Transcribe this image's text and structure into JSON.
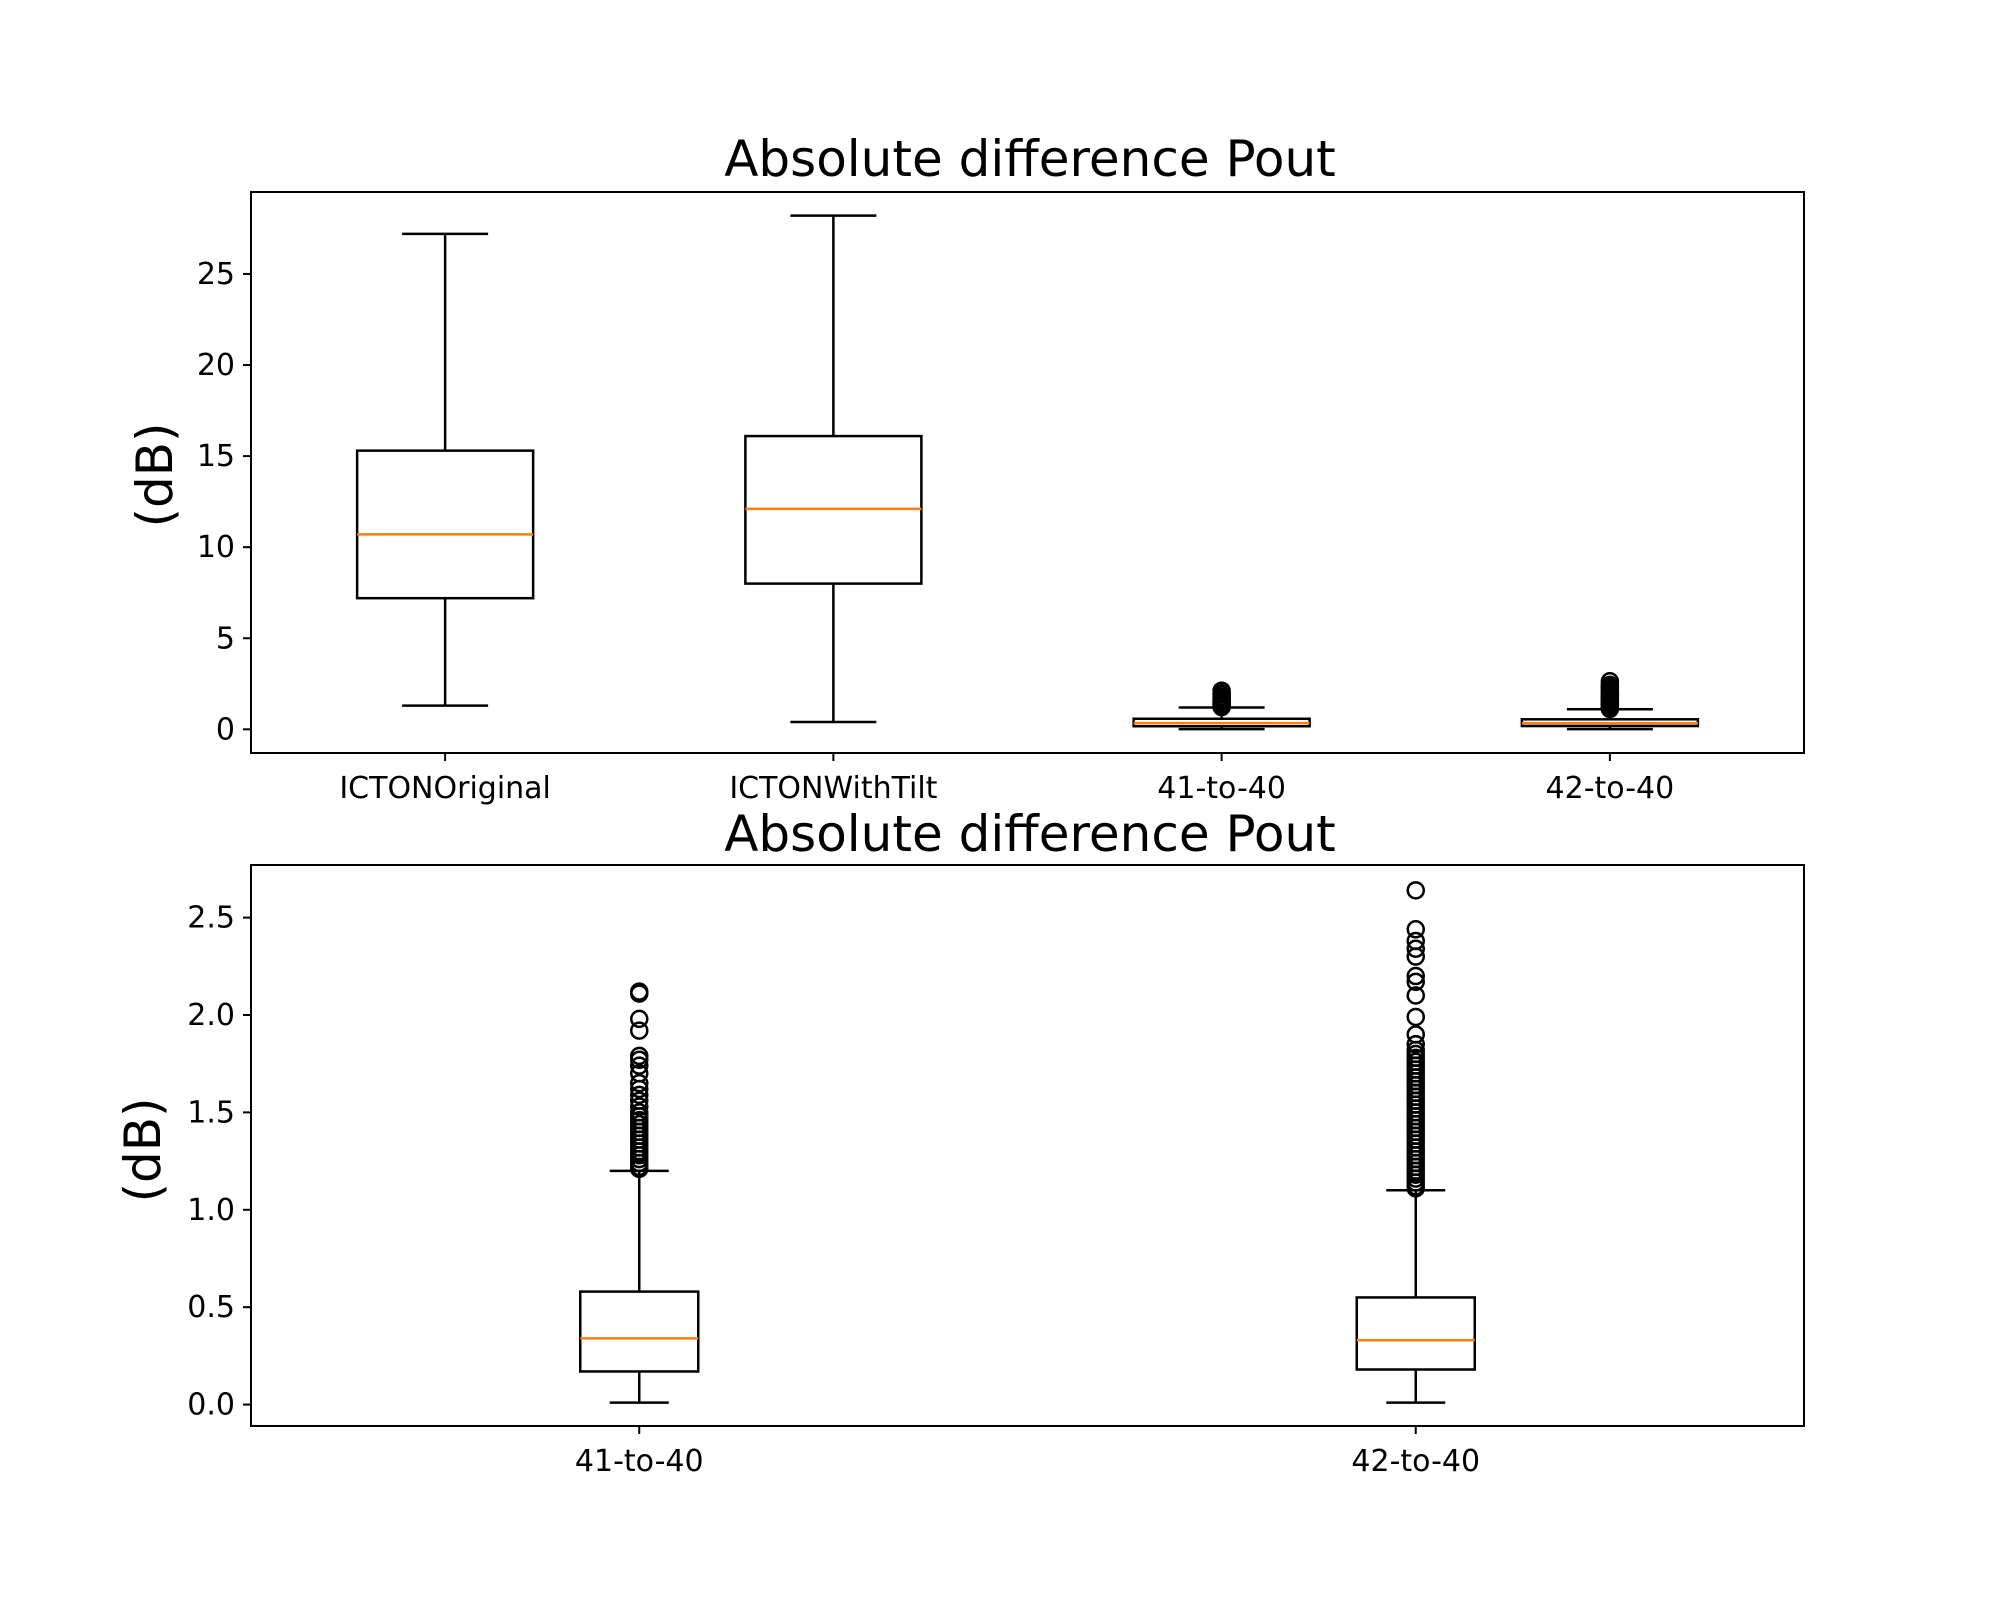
{
  "chart_data": [
    {
      "type": "box",
      "title": "Absolute difference Pout",
      "ylabel": "(dB)",
      "ylim": [
        -1.3,
        29.5
      ],
      "yticks": [
        "0",
        "5",
        "10",
        "15",
        "20",
        "25"
      ],
      "categories": [
        "ICTONOriginal",
        "ICTONWithTilt",
        "41-to-40",
        "42-to-40"
      ],
      "boxes": [
        {
          "whislo": 1.3,
          "q1": 7.2,
          "med": 10.7,
          "q3": 15.3,
          "whishi": 27.2,
          "fliers": []
        },
        {
          "whislo": 0.4,
          "q1": 8.0,
          "med": 12.1,
          "q3": 16.1,
          "whishi": 28.2,
          "fliers": []
        },
        {
          "whislo": 0.01,
          "q1": 0.17,
          "med": 0.34,
          "q3": 0.58,
          "whishi": 1.2,
          "fliers": [
            1.22,
            1.25,
            1.3,
            1.35,
            1.4,
            1.45,
            1.5,
            1.55,
            1.6,
            1.65,
            1.7,
            1.78,
            1.92,
            1.98,
            2.12
          ]
        },
        {
          "whislo": 0.01,
          "q1": 0.18,
          "med": 0.33,
          "q3": 0.55,
          "whishi": 1.1,
          "fliers": [
            1.12,
            1.18,
            1.25,
            1.32,
            1.4,
            1.48,
            1.55,
            1.62,
            1.7,
            1.78,
            1.85,
            1.9,
            1.99,
            2.1,
            2.19,
            2.3,
            2.36,
            2.44,
            2.64
          ]
        }
      ]
    },
    {
      "type": "box",
      "title": "Absolute difference Pout",
      "ylabel": "(dB)",
      "ylim": [
        -0.11,
        2.77
      ],
      "yticks": [
        "0.0",
        "0.5",
        "1.0",
        "1.5",
        "2.0",
        "2.5"
      ],
      "categories": [
        "41-to-40",
        "42-to-40"
      ],
      "boxes": [
        {
          "whislo": 0.01,
          "q1": 0.17,
          "med": 0.34,
          "q3": 0.58,
          "whishi": 1.2,
          "fliers": [
            1.21,
            1.22,
            1.24,
            1.26,
            1.28,
            1.3,
            1.32,
            1.34,
            1.36,
            1.38,
            1.4,
            1.42,
            1.44,
            1.46,
            1.48,
            1.5,
            1.53,
            1.56,
            1.59,
            1.62,
            1.65,
            1.7,
            1.74,
            1.77,
            1.79,
            1.92,
            1.98,
            2.11,
            2.12
          ]
        },
        {
          "whislo": 0.01,
          "q1": 0.18,
          "med": 0.33,
          "q3": 0.55,
          "whishi": 1.1,
          "fliers": [
            1.11,
            1.12,
            1.14,
            1.16,
            1.18,
            1.2,
            1.22,
            1.24,
            1.26,
            1.28,
            1.3,
            1.32,
            1.34,
            1.36,
            1.38,
            1.4,
            1.42,
            1.44,
            1.46,
            1.48,
            1.5,
            1.52,
            1.54,
            1.56,
            1.58,
            1.6,
            1.62,
            1.64,
            1.66,
            1.68,
            1.7,
            1.72,
            1.74,
            1.76,
            1.78,
            1.8,
            1.82,
            1.85,
            1.9,
            1.99,
            2.1,
            2.17,
            2.2,
            2.3,
            2.34,
            2.38,
            2.44,
            2.64
          ]
        }
      ]
    }
  ],
  "colors": {
    "box": "#000000",
    "median": "#ff7f0e",
    "frame": "#000000",
    "background": "#ffffff"
  }
}
